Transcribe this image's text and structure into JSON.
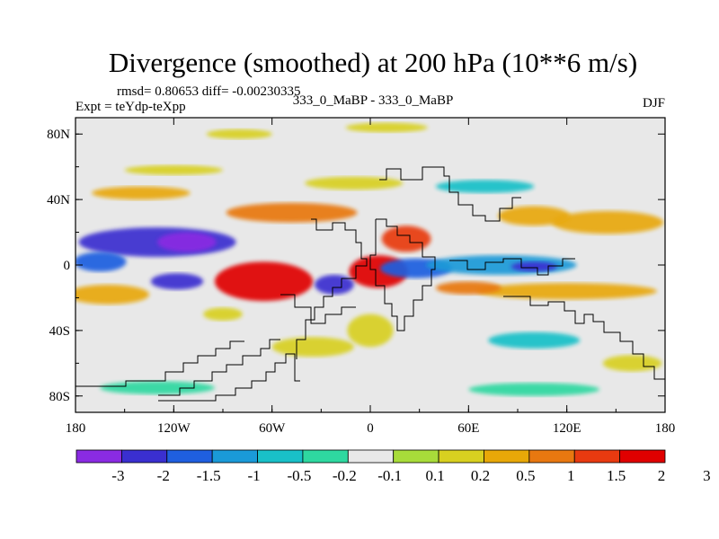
{
  "chart_data": {
    "type": "heatmap",
    "title": "Divergence (smoothed) at 200 hPa (10**6 m/s)",
    "subtitle_left_1": "rmsd= 0.80653 diff= -0.00230335",
    "subtitle_left_2": "Expt = teYdp-teXpp",
    "subtitle_center": "333_0_MaBP - 333_0_MaBP",
    "subtitle_right": "DJF",
    "x_ticks": [
      "180",
      "120W",
      "60W",
      "0",
      "60E",
      "120E",
      "180"
    ],
    "y_ticks": [
      "80N",
      "40N",
      "0",
      "40S",
      "80S"
    ],
    "xlim": [
      -180,
      180
    ],
    "ylim": [
      -90,
      90
    ],
    "colorbar": {
      "colors": [
        "#8a2be2",
        "#3a2fd0",
        "#1f5fe0",
        "#1a9ad8",
        "#19c0c8",
        "#2ed8a0",
        "#e8e8e8",
        "#a8dc3a",
        "#d8d020",
        "#e8a808",
        "#e87810",
        "#e83a10",
        "#e00000"
      ],
      "labels": [
        "-3",
        "-2",
        "-1.5",
        "-1",
        "-0.5",
        "-0.2",
        "-0.1",
        "0.1",
        "0.2",
        "0.5",
        "1",
        "1.5",
        "2",
        "3"
      ]
    },
    "blobs": [
      {
        "lon": -130,
        "lat": 14,
        "rx": 48,
        "ry": 9,
        "level": 1
      },
      {
        "lon": -112,
        "lat": 14,
        "rx": 18,
        "ry": 6,
        "level": 0
      },
      {
        "lon": -165,
        "lat": 2,
        "rx": 16,
        "ry": 6,
        "level": 2
      },
      {
        "lon": -118,
        "lat": -10,
        "rx": 16,
        "ry": 5,
        "level": 1
      },
      {
        "lon": -65,
        "lat": -10,
        "rx": 30,
        "ry": 12,
        "level": 12
      },
      {
        "lon": -48,
        "lat": 32,
        "rx": 40,
        "ry": 6,
        "level": 10
      },
      {
        "lon": 5,
        "lat": -4,
        "rx": 18,
        "ry": 10,
        "level": 12
      },
      {
        "lon": 22,
        "lat": 16,
        "rx": 15,
        "ry": 8,
        "level": 11
      },
      {
        "lon": 28,
        "lat": -2,
        "rx": 22,
        "ry": 6,
        "level": 2
      },
      {
        "lon": -22,
        "lat": -12,
        "rx": 12,
        "ry": 6,
        "level": 1
      },
      {
        "lon": 80,
        "lat": 0,
        "rx": 46,
        "ry": 6,
        "level": 3
      },
      {
        "lon": 100,
        "lat": -1,
        "rx": 14,
        "ry": 3,
        "level": 1
      },
      {
        "lon": 145,
        "lat": 26,
        "rx": 34,
        "ry": 7,
        "level": 9
      },
      {
        "lon": 100,
        "lat": 30,
        "rx": 22,
        "ry": 6,
        "level": 9
      },
      {
        "lon": 120,
        "lat": -16,
        "rx": 55,
        "ry": 5,
        "level": 9
      },
      {
        "lon": 60,
        "lat": -14,
        "rx": 20,
        "ry": 4,
        "level": 10
      },
      {
        "lon": -160,
        "lat": -18,
        "rx": 25,
        "ry": 6,
        "level": 9
      },
      {
        "lon": 70,
        "lat": 48,
        "rx": 30,
        "ry": 4,
        "level": 4
      },
      {
        "lon": -10,
        "lat": 50,
        "rx": 30,
        "ry": 4,
        "level": 8
      },
      {
        "lon": -120,
        "lat": 58,
        "rx": 30,
        "ry": 3,
        "level": 8
      },
      {
        "lon": -140,
        "lat": 44,
        "rx": 30,
        "ry": 4,
        "level": 9
      },
      {
        "lon": 0,
        "lat": -40,
        "rx": 14,
        "ry": 10,
        "level": 8
      },
      {
        "lon": -35,
        "lat": -50,
        "rx": 25,
        "ry": 6,
        "level": 8
      },
      {
        "lon": 100,
        "lat": -46,
        "rx": 28,
        "ry": 5,
        "level": 4
      },
      {
        "lon": 160,
        "lat": -60,
        "rx": 18,
        "ry": 5,
        "level": 8
      },
      {
        "lon": -130,
        "lat": -75,
        "rx": 35,
        "ry": 4,
        "level": 5
      },
      {
        "lon": 100,
        "lat": -76,
        "rx": 40,
        "ry": 4,
        "level": 5
      },
      {
        "lon": -80,
        "lat": 80,
        "rx": 20,
        "ry": 3,
        "level": 8
      },
      {
        "lon": 10,
        "lat": 84,
        "rx": 25,
        "ry": 3,
        "level": 8
      },
      {
        "lon": -90,
        "lat": -30,
        "rx": 12,
        "ry": 4,
        "level": 8
      }
    ]
  }
}
